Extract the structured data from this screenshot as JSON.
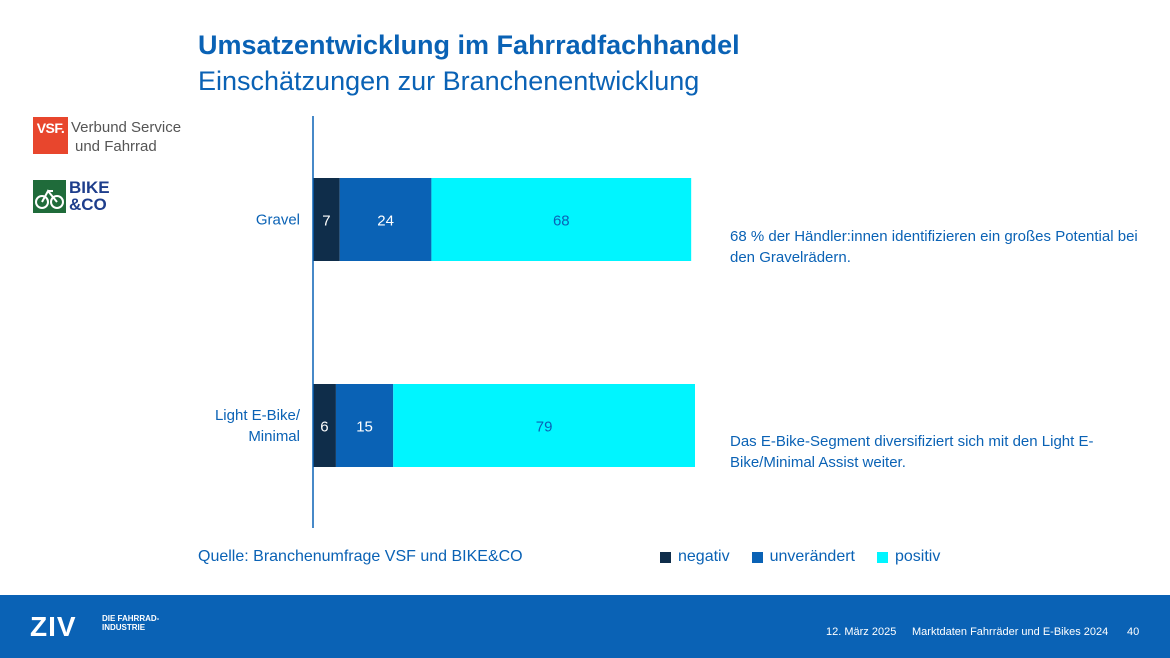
{
  "header": {
    "title": "Umsatzentwicklung im Fahrradfachhandel",
    "subtitle": "Einschätzungen zur Branchenentwicklung"
  },
  "logos": {
    "vsf": {
      "mark": "VSF.",
      "line1": "Verbund Service",
      "line2": "und Fahrrad"
    },
    "bike_co": {
      "line1": "BIKE",
      "line2": "&CO"
    }
  },
  "chart_data": {
    "type": "bar",
    "orientation": "horizontal",
    "stacked": true,
    "categories": [
      "Gravel",
      "Light E-Bike/\nMinimal"
    ],
    "category_lines": [
      [
        "Gravel"
      ],
      [
        "Light E-Bike/",
        "Minimal"
      ]
    ],
    "series": [
      {
        "name": "negativ",
        "values": [
          7,
          6
        ],
        "color": "#0f2d4a"
      },
      {
        "name": "unverändert",
        "values": [
          24,
          15
        ],
        "color": "#0a62b5"
      },
      {
        "name": "positiv",
        "values": [
          68,
          79
        ],
        "color": "#00f5ff"
      }
    ],
    "xlim": [
      0,
      100
    ],
    "data_labels": true,
    "legend_position": "bottom"
  },
  "notes": [
    "68 % der Händler:innen identifizieren ein großes Potential bei den Gravelrädern.",
    "Das E-Bike-Segment diversifiziert sich mit den Light E-Bike/Minimal Assist weiter."
  ],
  "source": "Quelle: Branchenumfrage VSF und BIKE&CO",
  "footer": {
    "brand": "ZIV",
    "brand_tag": "DIE FAHRRAD-INDUSTRIE",
    "date": "12. März 2025",
    "doc_title": "Marktdaten Fahrräder und E-Bikes 2024",
    "page": "40"
  }
}
